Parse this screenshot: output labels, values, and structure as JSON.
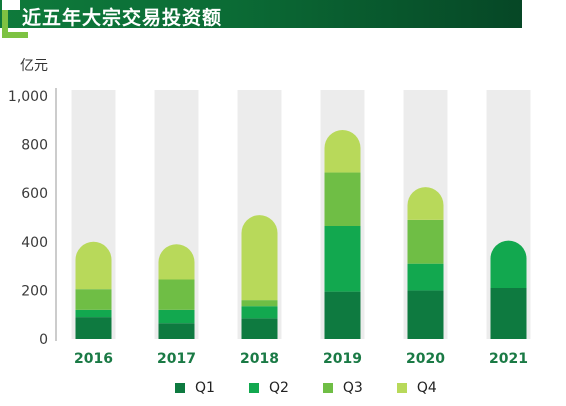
{
  "header": {
    "title": "近五年大宗交易投资额"
  },
  "chart_data": {
    "type": "bar",
    "stacked": true,
    "title": "近五年大宗交易投资额",
    "ylabel": "亿元",
    "xlabel": "",
    "ylim": [
      0,
      1000
    ],
    "yticks": [
      0,
      200,
      400,
      600,
      800,
      1000
    ],
    "ytick_labels": [
      "0",
      "200",
      "400",
      "600",
      "800",
      "1,000"
    ],
    "categories": [
      "2016",
      "2017",
      "2018",
      "2019",
      "2020",
      "2021"
    ],
    "series": [
      {
        "name": "Q1",
        "color": "#0e7a40",
        "values": [
          90,
          65,
          85,
          195,
          200,
          210
        ]
      },
      {
        "name": "Q2",
        "color": "#12a84f",
        "values": [
          30,
          55,
          50,
          270,
          110,
          195
        ]
      },
      {
        "name": "Q3",
        "color": "#6fbe45",
        "values": [
          85,
          125,
          25,
          220,
          180,
          0
        ]
      },
      {
        "name": "Q4",
        "color": "#b8d95a",
        "values": [
          195,
          145,
          350,
          175,
          135,
          0
        ]
      }
    ],
    "legend_position": "bottom",
    "background_columns": true,
    "background_color": "#ececec"
  }
}
